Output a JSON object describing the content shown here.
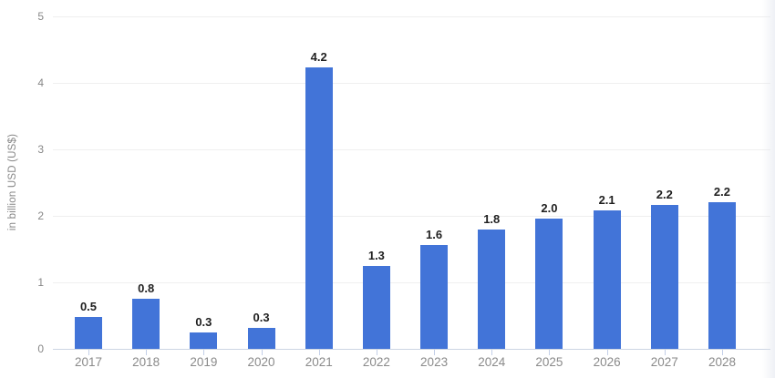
{
  "chart_data": {
    "type": "bar",
    "title": "",
    "xlabel": "",
    "ylabel": "in billion USD (US$)",
    "categories": [
      "2017",
      "2018",
      "2019",
      "2020",
      "2021",
      "2022",
      "2023",
      "2024",
      "2025",
      "2026",
      "2027",
      "2028"
    ],
    "values": [
      0.5,
      0.8,
      0.3,
      0.3,
      4.2,
      1.3,
      1.6,
      1.8,
      2.0,
      2.1,
      2.2,
      2.2
    ],
    "value_labels": [
      "0.5",
      "0.8",
      "0.3",
      "0.3",
      "4.2",
      "1.3",
      "1.6",
      "1.8",
      "2.0",
      "2.1",
      "2.2",
      "2.2"
    ],
    "precise_values": [
      0.48,
      0.76,
      0.25,
      0.32,
      4.23,
      1.25,
      1.56,
      1.79,
      1.96,
      2.08,
      2.17,
      2.2
    ],
    "y_ticks": [
      0,
      1,
      2,
      3,
      4,
      5
    ],
    "ylim": [
      0,
      5
    ],
    "grid": true,
    "legend": false
  },
  "colors": {
    "bar": "#4274d8",
    "gridline": "#efefef",
    "axis_line": "#ccd5e3",
    "axis_tick": "#c3cfe8",
    "tick_label": "#878787",
    "x_label": "#8a8a8a",
    "value_label": "#1f1f1f",
    "y_axis_title": "#878787",
    "background": "#ffffff"
  }
}
